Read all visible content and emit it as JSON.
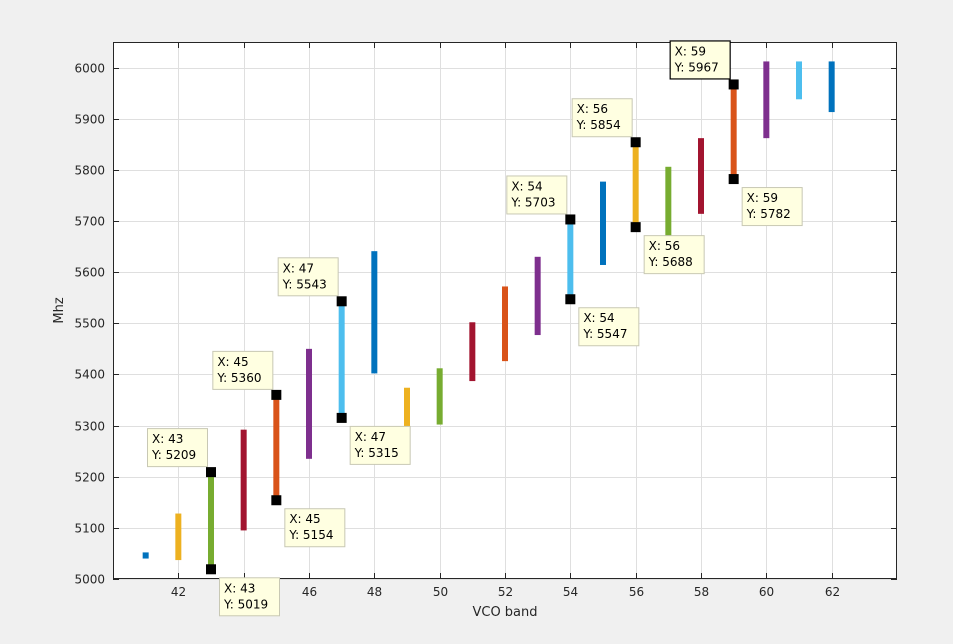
{
  "chart_data": {
    "type": "range-bar",
    "xlabel": "VCO band",
    "ylabel": "Mhz",
    "xlim": [
      40,
      64
    ],
    "ylim": [
      5000,
      6050
    ],
    "xticks": [
      "42",
      "44",
      "46",
      "48",
      "50",
      "52",
      "54",
      "56",
      "58",
      "60",
      "62"
    ],
    "yticks": [
      "5000",
      "5100",
      "5200",
      "5300",
      "5400",
      "5500",
      "5600",
      "5700",
      "5800",
      "5900",
      "6000"
    ],
    "grid": true,
    "bars": [
      {
        "x": 41,
        "low": 5040,
        "high": 5052,
        "color": "#0072BD"
      },
      {
        "x": 42,
        "low": 5037,
        "high": 5128,
        "color": "#EDB120"
      },
      {
        "x": 43,
        "low": 5019,
        "high": 5209,
        "color": "#77AC30"
      },
      {
        "x": 44,
        "low": 5095,
        "high": 5292,
        "color": "#A2142F"
      },
      {
        "x": 45,
        "low": 5154,
        "high": 5360,
        "color": "#D95319"
      },
      {
        "x": 46,
        "low": 5235,
        "high": 5450,
        "color": "#7E2F8E"
      },
      {
        "x": 47,
        "low": 5315,
        "high": 5543,
        "color": "#4DBEEE"
      },
      {
        "x": 48,
        "low": 5402,
        "high": 5641,
        "color": "#0072BD"
      },
      {
        "x": 49,
        "low": 5245,
        "high": 5374,
        "color": "#EDB120"
      },
      {
        "x": 50,
        "low": 5302,
        "high": 5412,
        "color": "#77AC30"
      },
      {
        "x": 51,
        "low": 5387,
        "high": 5502,
        "color": "#A2142F"
      },
      {
        "x": 52,
        "low": 5426,
        "high": 5572,
        "color": "#D95319"
      },
      {
        "x": 53,
        "low": 5477,
        "high": 5630,
        "color": "#7E2F8E"
      },
      {
        "x": 54,
        "low": 5547,
        "high": 5703,
        "color": "#4DBEEE"
      },
      {
        "x": 55,
        "low": 5614,
        "high": 5777,
        "color": "#0072BD"
      },
      {
        "x": 56,
        "low": 5688,
        "high": 5854,
        "color": "#EDB120"
      },
      {
        "x": 57,
        "low": 5670,
        "high": 5806,
        "color": "#77AC30"
      },
      {
        "x": 58,
        "low": 5714,
        "high": 5862,
        "color": "#A2142F"
      },
      {
        "x": 59,
        "low": 5782,
        "high": 5967,
        "color": "#D95319"
      },
      {
        "x": 60,
        "low": 5862,
        "high": 6012,
        "color": "#7E2F8E"
      },
      {
        "x": 61,
        "low": 5938,
        "high": 6012,
        "color": "#4DBEEE"
      },
      {
        "x": 62,
        "low": 5913,
        "high": 6012,
        "color": "#0072BD"
      }
    ],
    "datatips": [
      {
        "x": 43,
        "y": 5209,
        "x_text": "X: 43",
        "y_text": "Y: 5209",
        "place": "above-left",
        "selected": false
      },
      {
        "x": 43,
        "y": 5019,
        "x_text": "X: 43",
        "y_text": "Y: 5019",
        "place": "below-right",
        "selected": false
      },
      {
        "x": 45,
        "y": 5360,
        "x_text": "X: 45",
        "y_text": "Y: 5360",
        "place": "above-left",
        "selected": false
      },
      {
        "x": 45,
        "y": 5154,
        "x_text": "X: 45",
        "y_text": "Y: 5154",
        "place": "below-right",
        "selected": false
      },
      {
        "x": 47,
        "y": 5543,
        "x_text": "X: 47",
        "y_text": "Y: 5543",
        "place": "above-left",
        "selected": false
      },
      {
        "x": 47,
        "y": 5315,
        "x_text": "X: 47",
        "y_text": "Y: 5315",
        "place": "below-right",
        "selected": false
      },
      {
        "x": 54,
        "y": 5703,
        "x_text": "X: 54",
        "y_text": "Y: 5703",
        "place": "above-left",
        "selected": false
      },
      {
        "x": 54,
        "y": 5547,
        "x_text": "X: 54",
        "y_text": "Y: 5547",
        "place": "below-right",
        "selected": false
      },
      {
        "x": 56,
        "y": 5854,
        "x_text": "X: 56",
        "y_text": "Y: 5854",
        "place": "above-left",
        "selected": false
      },
      {
        "x": 56,
        "y": 5688,
        "x_text": "X: 56",
        "y_text": "Y: 5688",
        "place": "below-right",
        "selected": false
      },
      {
        "x": 59,
        "y": 5967,
        "x_text": "X: 59",
        "y_text": "Y: 5967",
        "place": "above-left",
        "selected": true
      },
      {
        "x": 59,
        "y": 5782,
        "x_text": "X: 59",
        "y_text": "Y: 5782",
        "place": "below-right",
        "selected": false
      }
    ]
  }
}
